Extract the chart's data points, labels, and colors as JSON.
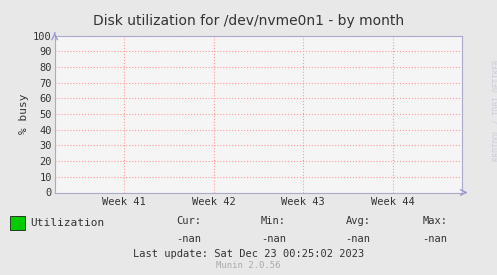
{
  "title": "Disk utilization for /dev/nvme0n1 - by month",
  "ylabel": "% busy",
  "yticks": [
    0,
    10,
    20,
    30,
    40,
    50,
    60,
    70,
    80,
    90,
    100
  ],
  "ylim": [
    0,
    100
  ],
  "xtick_labels": [
    "Week 41",
    "Week 42",
    "Week 43",
    "Week 44"
  ],
  "bg_color": "#e8e8e8",
  "plot_bg_color": "#f5f5f5",
  "grid_color": "#ff9999",
  "border_color": "#aaaacc",
  "title_color": "#333333",
  "label_color": "#333333",
  "arrow_color": "#9999cc",
  "watermark": "RRDTOOL / TOBI OETIKER",
  "munin_version": "Munin 2.0.56",
  "legend_label": "Utilization",
  "legend_color": "#00cc00",
  "cur_label": "Cur:",
  "cur_value": "-nan",
  "min_label": "Min:",
  "min_value": "-nan",
  "avg_label": "Avg:",
  "avg_value": "-nan",
  "max_label": "Max:",
  "max_value": "-nan",
  "last_update": "Last update: Sat Dec 23 00:25:02 2023"
}
